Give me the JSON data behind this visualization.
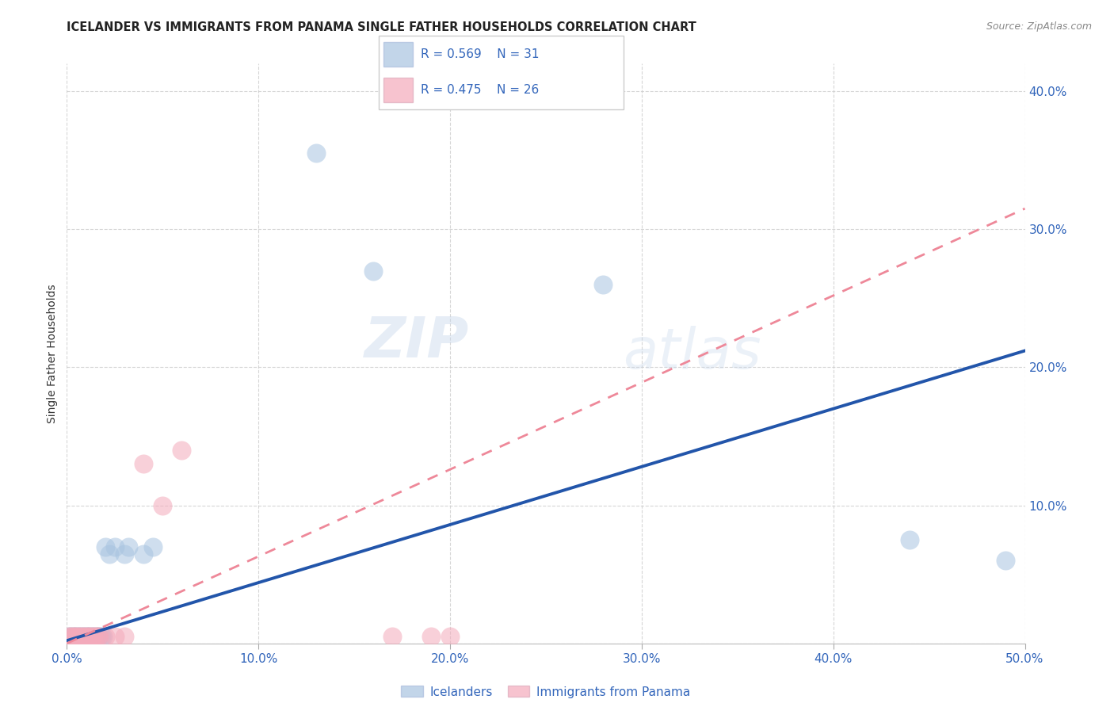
{
  "title": "ICELANDER VS IMMIGRANTS FROM PANAMA SINGLE FATHER HOUSEHOLDS CORRELATION CHART",
  "source": "Source: ZipAtlas.com",
  "ylabel": "Single Father Households",
  "xlim": [
    0.0,
    0.5
  ],
  "ylim": [
    0.0,
    0.42
  ],
  "xticks": [
    0.0,
    0.1,
    0.2,
    0.3,
    0.4,
    0.5
  ],
  "yticks": [
    0.0,
    0.1,
    0.2,
    0.3,
    0.4
  ],
  "xticklabels": [
    "0.0%",
    "10.0%",
    "20.0%",
    "30.0%",
    "40.0%",
    "50.0%"
  ],
  "yticklabels": [
    "",
    "10.0%",
    "20.0%",
    "30.0%",
    "40.0%"
  ],
  "legend_r1": "R = 0.569",
  "legend_n1": "N = 31",
  "legend_r2": "R = 0.475",
  "legend_n2": "N = 26",
  "blue_color": "#A8C4E0",
  "pink_color": "#F4AABB",
  "blue_line_color": "#2255AA",
  "pink_line_color": "#EE8899",
  "watermark_zip": "ZIP",
  "watermark_atlas": "atlas",
  "blue_line_x0": 0.0,
  "blue_line_y0": 0.002,
  "blue_line_x1": 0.5,
  "blue_line_y1": 0.212,
  "pink_line_x0": 0.0,
  "pink_line_y0": 0.0,
  "pink_line_x1": 0.5,
  "pink_line_y1": 0.315,
  "blue_scatter_x": [
    0.001,
    0.002,
    0.003,
    0.004,
    0.005,
    0.006,
    0.007,
    0.008,
    0.009,
    0.01,
    0.011,
    0.012,
    0.013,
    0.014,
    0.015,
    0.016,
    0.017,
    0.018,
    0.019,
    0.02,
    0.022,
    0.025,
    0.03,
    0.032,
    0.04,
    0.045,
    0.13,
    0.16,
    0.28,
    0.44,
    0.49
  ],
  "blue_scatter_y": [
    0.005,
    0.005,
    0.005,
    0.005,
    0.005,
    0.005,
    0.005,
    0.005,
    0.005,
    0.005,
    0.005,
    0.005,
    0.005,
    0.005,
    0.005,
    0.005,
    0.005,
    0.005,
    0.005,
    0.07,
    0.065,
    0.07,
    0.065,
    0.07,
    0.065,
    0.07,
    0.355,
    0.27,
    0.26,
    0.075,
    0.06
  ],
  "pink_scatter_x": [
    0.001,
    0.002,
    0.003,
    0.004,
    0.005,
    0.006,
    0.007,
    0.008,
    0.009,
    0.01,
    0.011,
    0.012,
    0.013,
    0.014,
    0.015,
    0.016,
    0.017,
    0.02,
    0.025,
    0.03,
    0.04,
    0.05,
    0.06,
    0.17,
    0.19,
    0.2
  ],
  "pink_scatter_y": [
    0.005,
    0.005,
    0.005,
    0.005,
    0.005,
    0.005,
    0.005,
    0.005,
    0.005,
    0.005,
    0.005,
    0.005,
    0.005,
    0.005,
    0.005,
    0.005,
    0.005,
    0.005,
    0.005,
    0.005,
    0.13,
    0.1,
    0.14,
    0.005,
    0.005,
    0.005
  ]
}
